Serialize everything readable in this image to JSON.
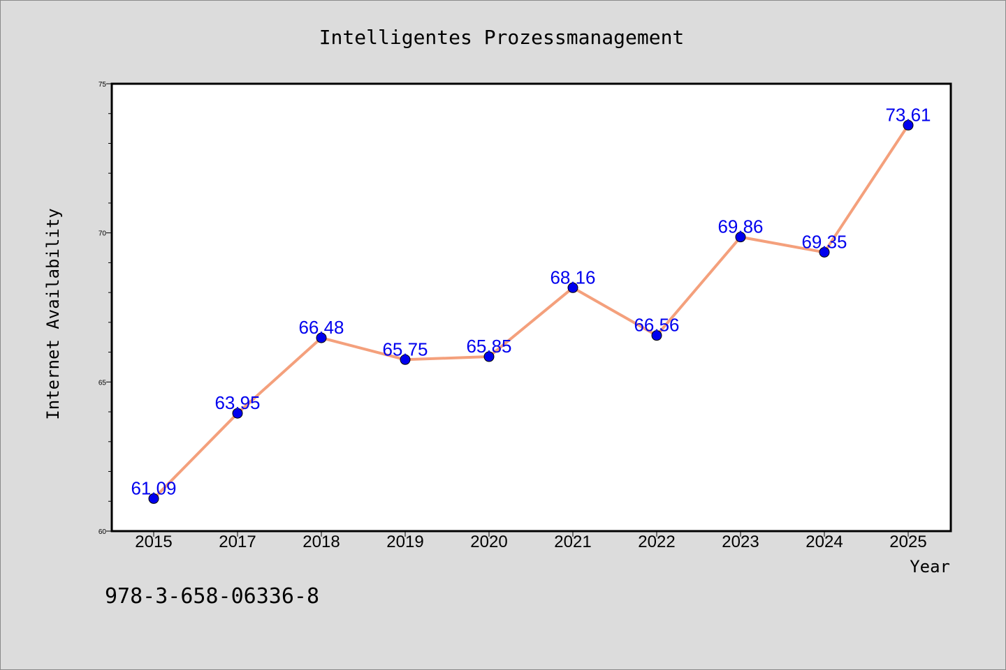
{
  "chart_data": {
    "type": "line",
    "title": "Intelligentes Prozessmanagement",
    "xlabel": "Year",
    "ylabel": "Internet Availability",
    "categories": [
      "2015",
      "2017",
      "2018",
      "2019",
      "2020",
      "2021",
      "2022",
      "2023",
      "2024",
      "2025"
    ],
    "values": [
      61.09,
      63.95,
      66.48,
      65.75,
      65.85,
      68.16,
      66.56,
      69.86,
      69.35,
      73.61
    ],
    "data_labels": [
      "61.09",
      "63.95",
      "66.48",
      "65.75",
      "65.85",
      "68.16",
      "66.56",
      "69.86",
      "69.35",
      "73.61"
    ],
    "ylim": [
      60,
      75
    ],
    "yticks": [
      "60",
      "65",
      "70",
      "75"
    ],
    "grid": false,
    "line_color": "#f4a07c",
    "marker_color": "#0000ee",
    "label_color": "#0000ee"
  },
  "footer_text": "978-3-658-06336-8"
}
